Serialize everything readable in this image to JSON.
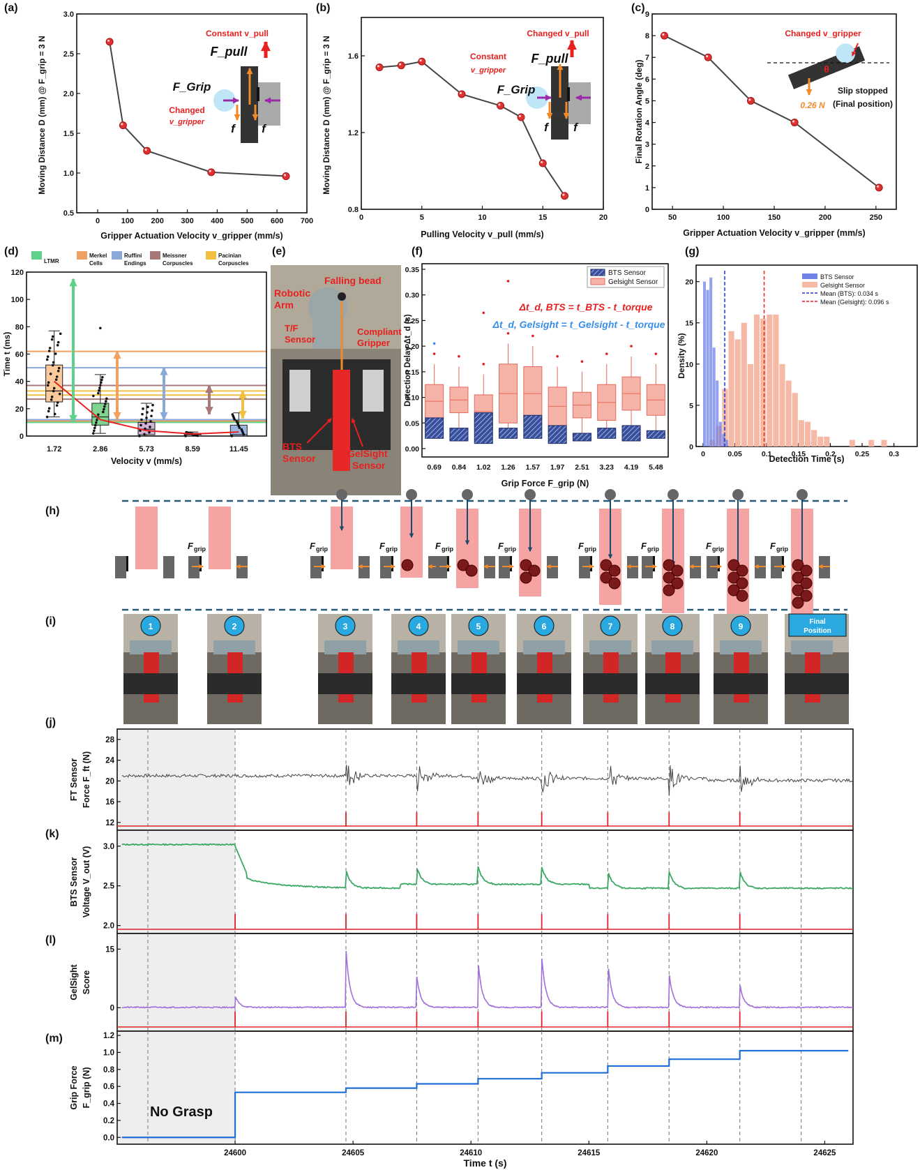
{
  "figure_title": "Slip detection characterization and bead-drop experiment",
  "colors": {
    "red_marker": "#e03030",
    "bts_blue": "#3a4f9a",
    "gel_pink": "#f6b3a8",
    "green_trace": "#3aa864",
    "purple_trace": "#a070d8",
    "grip_blue": "#1f6fd6",
    "event_red": "#e0202a",
    "annot_red": "#e82020",
    "annot_blue": "#3a8ee8",
    "arrow_orange": "#f08a2a",
    "arrow_purple": "#9a2aa8"
  },
  "chart_data": [
    {
      "id": "a",
      "label": "(a)",
      "type": "line",
      "x": [
        40,
        85,
        165,
        380,
        630
      ],
      "y": [
        2.65,
        1.6,
        1.28,
        1.01,
        0.96
      ],
      "xlim": [
        -70,
        700
      ],
      "ylim": [
        0.5,
        3.0
      ],
      "xticks": [
        0,
        100,
        200,
        300,
        400,
        500,
        600,
        700
      ],
      "yticks": [
        "0.5",
        "1.0",
        "1.5",
        "2.0",
        "2.5",
        "3.0"
      ],
      "xlabel": "Gripper Actuation Velocity v_gripper (mm/s)",
      "ylabel": "Moving Distance D (mm) @ F_grip = 3 N",
      "annotations": [
        "Constant v_pull",
        "F_pull",
        "F_Grip",
        "Changed",
        "v_gripper",
        "f",
        "f"
      ]
    },
    {
      "id": "b",
      "label": "(b)",
      "type": "line",
      "x": [
        1.5,
        3.3,
        5.0,
        8.3,
        11.5,
        13.2,
        15.0,
        16.8
      ],
      "y": [
        1.54,
        1.55,
        1.57,
        1.4,
        1.34,
        1.28,
        1.04,
        0.87
      ],
      "xlim": [
        0,
        20
      ],
      "ylim": [
        0.8,
        1.8
      ],
      "xticks": [
        0,
        5,
        10,
        15,
        20
      ],
      "yticks": [
        "0.8",
        "1.2",
        "1.6"
      ],
      "xlabel": "Pulling Velocity v_pull (mm/s)",
      "ylabel": "Moving Distance D (mm) @ F_grip = 3 N",
      "annotations": [
        "Changed v_pull",
        "Constant",
        "v_gripper",
        "F_pull",
        "F_Grip",
        "f",
        "f"
      ]
    },
    {
      "id": "c",
      "label": "(c)",
      "type": "line",
      "x": [
        42,
        85,
        127,
        170,
        253
      ],
      "y": [
        8,
        7,
        5,
        4,
        1
      ],
      "xlim": [
        30,
        270
      ],
      "ylim": [
        0,
        9
      ],
      "xticks": [
        50,
        100,
        150,
        200,
        250
      ],
      "yticks": [
        0,
        1,
        2,
        3,
        4,
        5,
        6,
        7,
        8,
        9
      ],
      "xlabel": "Gripper Actuation Velocity v_gripper (mm/s)",
      "ylabel": "Final Rotation Angle (deg)",
      "annotations": [
        "Changed v_gripper",
        "θ",
        "0.26 N",
        "Slip stopped",
        "(Final position)"
      ]
    },
    {
      "id": "d",
      "label": "(d)",
      "type": "box",
      "categories": [
        "1.72",
        "2.86",
        "5.73",
        "8.59",
        "11.45"
      ],
      "boxes": [
        {
          "min": 14,
          "q1": 25,
          "med": 33,
          "q3": 52,
          "max": 77
        },
        {
          "min": 2,
          "q1": 8,
          "med": 14,
          "q3": 24,
          "max": 45
        },
        {
          "min": 0,
          "q1": 1,
          "med": 5,
          "q3": 10,
          "max": 24
        },
        {
          "min": 0,
          "q1": 0,
          "med": 1,
          "q3": 2,
          "max": 3
        },
        {
          "min": 0,
          "q1": 0,
          "med": 1,
          "q3": 8,
          "max": 17
        }
      ],
      "mean_curve": [
        40,
        12,
        4,
        1.5,
        3
      ],
      "ylim": [
        0,
        120
      ],
      "yticks": [
        0,
        20,
        40,
        60,
        80,
        100,
        120
      ],
      "xlabel": "Velocity v (mm/s)",
      "ylabel": "Time t (ms)",
      "legend": [
        "LTMR",
        "Merkel Cells",
        "Ruffini Endings",
        "Meissner Corpuscles",
        "Pacinian Corpuscles"
      ],
      "receptor_ranges": [
        {
          "name": "LTMR",
          "lo": 10,
          "hi": 115
        },
        {
          "name": "Merkel",
          "lo": 12,
          "hi": 62
        },
        {
          "name": "Ruffini",
          "lo": 12,
          "hi": 50
        },
        {
          "name": "Meissner",
          "lo": 16,
          "hi": 37
        },
        {
          "name": "Pacinian",
          "lo": 13,
          "hi": 33
        }
      ]
    },
    {
      "id": "f",
      "label": "(f)",
      "type": "box",
      "categories": [
        "0.69",
        "0.84",
        "1.02",
        "1.26",
        "1.57",
        "1.97",
        "2.51",
        "3.23",
        "4.19",
        "5.48"
      ],
      "series": [
        {
          "name": "BTS Sensor",
          "q1": [
            0.02,
            0.015,
            0.01,
            0.02,
            0.02,
            0.01,
            0.015,
            0.02,
            0.015,
            0.02
          ],
          "q3": [
            0.06,
            0.04,
            0.07,
            0.04,
            0.065,
            0.045,
            0.03,
            0.04,
            0.045,
            0.035
          ]
        },
        {
          "name": "Gelsight Sensor",
          "q1": [
            0.06,
            0.07,
            0.04,
            0.05,
            0.055,
            0.045,
            0.06,
            0.055,
            0.075,
            0.065
          ],
          "q3": [
            0.125,
            0.12,
            0.105,
            0.165,
            0.16,
            0.12,
            0.11,
            0.125,
            0.14,
            0.125
          ]
        }
      ],
      "ylim": [
        0,
        0.35
      ],
      "yticks": [
        "0.00",
        "0.05",
        "0.10",
        "0.15",
        "0.20",
        "0.25",
        "0.30",
        "0.35"
      ],
      "xlabel": "Grip Force F_grip (N)",
      "ylabel": "Detection Delay Δt_d (s)",
      "legend": [
        "BTS Sensor",
        "Gelsight Sensor"
      ],
      "eq_bts": "Δt_d, BTS = t_BTS - t_torque",
      "eq_gel": "Δt_d, Gelsight = t_Gelsight - t_torque"
    },
    {
      "id": "g",
      "label": "(g)",
      "type": "bar",
      "ylim": [
        0,
        22
      ],
      "xlim": [
        0,
        0.33
      ],
      "yticks": [
        0,
        5,
        10,
        15,
        20
      ],
      "xticks": [
        "0",
        "0.05",
        "0.1",
        "0.15",
        "0.2",
        "0.25",
        "0.3"
      ],
      "bts_bins": [
        20,
        19,
        20.5,
        12,
        8,
        3,
        1.5,
        0.8
      ],
      "gel_bins": [
        0,
        0.8,
        2.5,
        7,
        14,
        13,
        15,
        10,
        16,
        15.5,
        16,
        16,
        10,
        8,
        6.5,
        3.2,
        3,
        2,
        1.2,
        1.2,
        0,
        0,
        0,
        0.8,
        0,
        0,
        0.8,
        0,
        0.8
      ],
      "xlabel": "Detection Time (s)",
      "ylabel": "Density (%)",
      "legend": [
        "BTS Sensor",
        "Gelsight Sensor",
        "Mean (BTS): 0.034 s",
        "Mean (Gelsight): 0.096 s"
      ],
      "mean_bts": 0.034,
      "mean_gel": 0.096
    },
    {
      "id": "j",
      "label": "(j)",
      "type": "line",
      "yticks": [
        12,
        16,
        20,
        24,
        28
      ],
      "ylim": [
        10.5,
        30
      ],
      "ylabel": "FT Sensor Force F_ft (N)",
      "baseline": 21
    },
    {
      "id": "k",
      "label": "(k)",
      "type": "line",
      "yticks": [
        "2.0",
        "2.5",
        "3.0"
      ],
      "ylim": [
        1.9,
        3.2
      ],
      "ylabel": "BTS Sensor Voltage V_out (V)"
    },
    {
      "id": "l",
      "label": "(l)",
      "type": "line",
      "yticks": [
        0,
        15
      ],
      "ylim": [
        -6,
        19
      ],
      "ylabel": "GelSight Score"
    },
    {
      "id": "m",
      "label": "(m)",
      "type": "line",
      "x": [
        24595.2,
        24600,
        24604.7,
        24607.7,
        24610.3,
        24613,
        24615.8,
        24618.4,
        24621.4,
        24626
      ],
      "y": [
        0,
        0.53,
        0.58,
        0.63,
        0.69,
        0.76,
        0.84,
        0.92,
        1.02,
        1.02
      ],
      "xlim": [
        24595,
        24626.2
      ],
      "ylim": [
        -0.08,
        1.25
      ],
      "yticks": [
        "0.0",
        "0.2",
        "0.4",
        "0.6",
        "0.8",
        "1.0",
        "1.2"
      ],
      "xticks": [
        "24600",
        "24605",
        "24610",
        "24615",
        "24620",
        "24625"
      ],
      "xlabel": "Time t (s)",
      "ylabel": "Grip Force F_grip (N)",
      "no_grasp_label": "No Grasp"
    }
  ],
  "panel_e": {
    "label": "(e)",
    "texts": [
      "Robotic",
      "Arm",
      "Falling bead",
      "T/F",
      "Sensor",
      "Compliant",
      "Gripper",
      "BTS",
      "Sensor",
      "GelSight",
      "Sensor"
    ]
  },
  "panel_h": {
    "label": "(h)",
    "grip_label": "F",
    "grip_sub": "grip",
    "beads_per_step": [
      0,
      0,
      0,
      1,
      2,
      3,
      4,
      5,
      6,
      7
    ]
  },
  "panel_i": {
    "label": "(i)",
    "steps": [
      "1",
      "2",
      "3",
      "4",
      "5",
      "6",
      "7",
      "8",
      "9"
    ],
    "final": [
      "Final",
      "Position"
    ]
  },
  "event_times": [
    24596.3,
    24600,
    24604.7,
    24607.7,
    24610.3,
    24613,
    24615.8,
    24618.4,
    24621.4,
    24624
  ]
}
